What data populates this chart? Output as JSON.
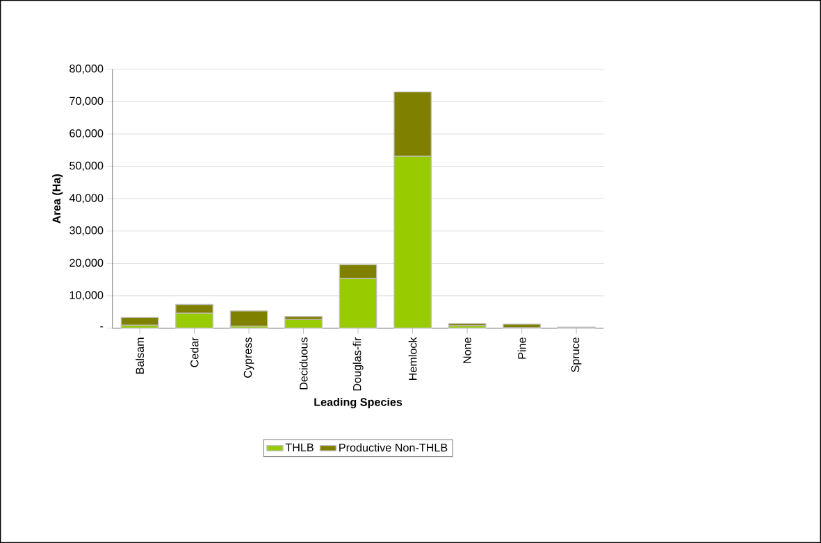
{
  "chart_data": {
    "type": "bar",
    "stacked": true,
    "xlabel": "Leading Species",
    "ylabel": "Area (Ha)",
    "categories": [
      "Balsam",
      "Cedar",
      "Cypress",
      "Deciduous",
      "Douglas-fir",
      "Hemlock",
      "None",
      "Pine",
      "Spruce"
    ],
    "series": [
      {
        "name": "THLB",
        "color": "#99cc00",
        "values": [
          900,
          4600,
          600,
          2600,
          15300,
          53100,
          700,
          100,
          200
        ]
      },
      {
        "name": "Productive Non-THLB",
        "color": "#808000",
        "values": [
          2400,
          2700,
          4700,
          1000,
          4300,
          19900,
          700,
          1100,
          100
        ]
      }
    ],
    "ylim": [
      0,
      80000
    ],
    "yticks": [
      {
        "value": 0,
        "label": "-"
      },
      {
        "value": 10000,
        "label": "10,000"
      },
      {
        "value": 20000,
        "label": "20,000"
      },
      {
        "value": 30000,
        "label": "30,000"
      },
      {
        "value": 40000,
        "label": "40,000"
      },
      {
        "value": 50000,
        "label": "50,000"
      },
      {
        "value": 60000,
        "label": "60,000"
      },
      {
        "value": 70000,
        "label": "70,000"
      },
      {
        "value": 80000,
        "label": "80,000"
      }
    ],
    "grid": "y",
    "legend": "bottom"
  }
}
